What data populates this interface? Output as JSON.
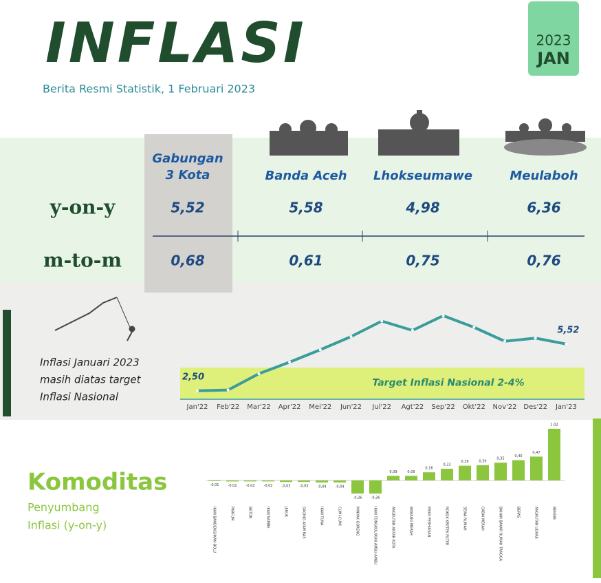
{
  "header": {
    "title": "INFLASI",
    "subtitle": "Berita Resmi Statistik, 1 Februari 2023",
    "year": "2023",
    "month": "JAN"
  },
  "table": {
    "columns": [
      "Gabungan 3 Kota",
      "Banda Aceh",
      "Lhokseumawe",
      "Meulaboh"
    ],
    "rows": [
      {
        "label": "y-on-y",
        "values": [
          "5,52",
          "5,58",
          "4,98",
          "6,36"
        ]
      },
      {
        "label": "m-to-m",
        "values": [
          "0,68",
          "0,61",
          "0,75",
          "0,76"
        ]
      }
    ]
  },
  "note": [
    "Inflasi Januari 2023",
    "masih diatas target",
    "Inflasi Nasional"
  ],
  "section": {
    "title": "Komoditas",
    "subtitle": [
      "Penyumbang",
      "Inflasi (y-on-y)"
    ]
  },
  "chart_data": [
    {
      "type": "line",
      "categories": [
        "Jan'22",
        "Feb'22",
        "Mar'22",
        "Apr'22",
        "Mei'22",
        "Jun'22",
        "Jul'22",
        "Agt'22",
        "Sep'22",
        "Okt'22",
        "Nov'22",
        "Des'22",
        "Jan'23"
      ],
      "values": [
        2.5,
        2.55,
        3.6,
        4.35,
        5.15,
        6.0,
        7.0,
        6.4,
        7.35,
        6.6,
        5.7,
        5.9,
        5.52
      ],
      "value_labels": [
        "2,50",
        null,
        null,
        null,
        null,
        null,
        null,
        null,
        null,
        null,
        null,
        null,
        "5,52"
      ],
      "color": "#3a9c9b",
      "ylim": [
        2,
        8
      ],
      "target_band": [
        2,
        4
      ],
      "annotation": "Target Inflasi Nasional 2-4%",
      "band_color": "#dff07a"
    },
    {
      "type": "bar",
      "categories": [
        "IKAN BANDENG/IKAN BOLU",
        "PARFUM",
        "BETON",
        "IKAN NAMBE",
        "JERUK",
        "DAGING AYAM RAS",
        "IKAN TUNA",
        "CUMI-CUMI",
        "MINYAK GORENG",
        "IKAN TONGKOL/IKAN AMBU-AMBU",
        "ANGKUTAN ANTAR KOTA",
        "BAWANG MERAH",
        "EMAS PERHIASAN",
        "ROKOK KRETEK FILTER",
        "SEWA RUMAH",
        "CABAI MERAH",
        "BAHAN BAKAR RUMAH TANGGA",
        "BERAS",
        "ANGKUTAN UDARA",
        "BENSIN"
      ],
      "values": [
        -0.01,
        -0.02,
        -0.02,
        -0.02,
        -0.03,
        -0.03,
        -0.04,
        -0.04,
        -0.26,
        -0.26,
        0.09,
        0.09,
        0.16,
        0.23,
        0.29,
        0.3,
        0.35,
        0.4,
        0.47,
        1.02
      ],
      "value_labels": [
        "-0,01",
        "-0,02",
        "-0,02",
        "-0,02",
        "-0,03",
        "-0,03",
        "-0,04",
        "-0,04",
        "-0,26",
        "-0,26",
        "0,09",
        "0,09",
        "0,16",
        "0,23",
        "0,29",
        "0,30",
        "0,35",
        "0,40",
        "0,47",
        "1,02"
      ],
      "color": "#8cc63f",
      "ylim": [
        -0.4,
        1.1
      ]
    }
  ]
}
